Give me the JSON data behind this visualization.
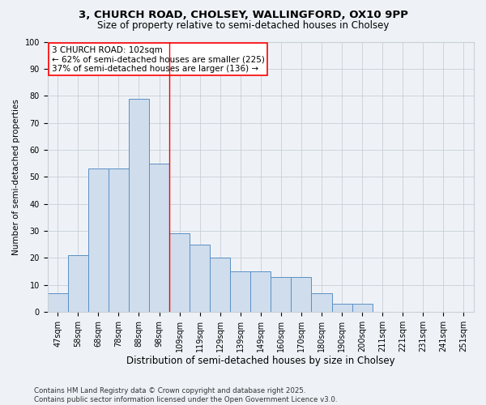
{
  "title1": "3, CHURCH ROAD, CHOLSEY, WALLINGFORD, OX10 9PP",
  "title2": "Size of property relative to semi-detached houses in Cholsey",
  "xlabel": "Distribution of semi-detached houses by size in Cholsey",
  "ylabel": "Number of semi-detached properties",
  "categories": [
    "47sqm",
    "58sqm",
    "68sqm",
    "78sqm",
    "88sqm",
    "98sqm",
    "109sqm",
    "119sqm",
    "129sqm",
    "139sqm",
    "149sqm",
    "160sqm",
    "170sqm",
    "180sqm",
    "190sqm",
    "200sqm",
    "211sqm",
    "221sqm",
    "231sqm",
    "241sqm",
    "251sqm"
  ],
  "values": [
    7,
    21,
    53,
    53,
    79,
    55,
    29,
    25,
    20,
    15,
    15,
    13,
    13,
    7,
    3,
    3,
    0,
    0,
    0,
    0,
    0
  ],
  "bar_color": "#cfdded",
  "bar_edge_color": "#5b8fc4",
  "red_line_x": 5.5,
  "annotation_title": "3 CHURCH ROAD: 102sqm",
  "annotation_line1": "← 62% of semi-detached houses are smaller (225)",
  "annotation_line2": "37% of semi-detached houses are larger (136) →",
  "ylim": [
    0,
    100
  ],
  "yticks": [
    0,
    10,
    20,
    30,
    40,
    50,
    60,
    70,
    80,
    90,
    100
  ],
  "footnote1": "Contains HM Land Registry data © Crown copyright and database right 2025.",
  "footnote2": "Contains public sector information licensed under the Open Government Licence v3.0.",
  "background_color": "#eef2f7",
  "grid_color": "#c8cfd8",
  "title1_fontsize": 9.5,
  "title2_fontsize": 8.5,
  "xlabel_fontsize": 8.5,
  "ylabel_fontsize": 7.5,
  "tick_fontsize": 7,
  "annot_fontsize": 7.5,
  "footnote_fontsize": 6.2
}
